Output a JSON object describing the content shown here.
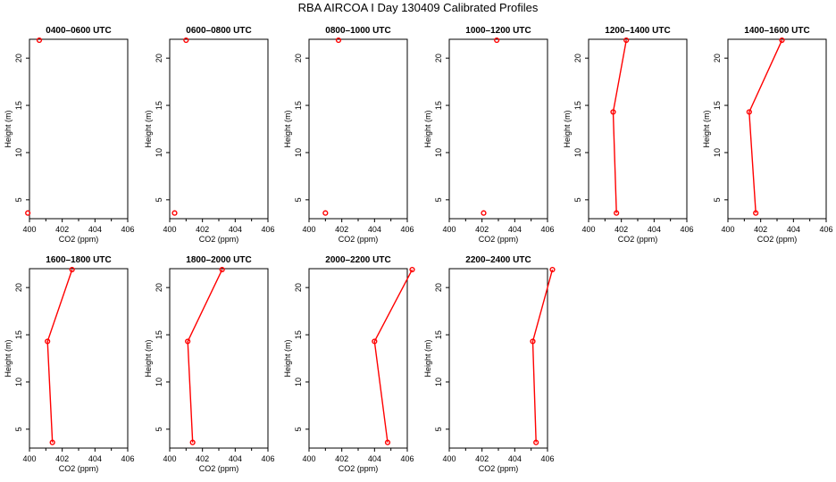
{
  "figure": {
    "title": "RBA AIRCOA I  Day 130409  Calibrated Profiles",
    "series_color": "#ff0000"
  },
  "chart_data": [
    {
      "type": "line",
      "title": "0400–0600 UTC",
      "xlabel": "CO2 (ppm)",
      "ylabel": "Height (m)",
      "xlim": [
        400,
        406
      ],
      "ylim": [
        3,
        22
      ],
      "xticks": [
        400,
        402,
        404,
        406
      ],
      "yticks": [
        5,
        10,
        15,
        20
      ],
      "points": [
        {
          "x": 399.9,
          "y": 3.6
        },
        {
          "x": 400.6,
          "y": 21.9
        }
      ],
      "connected": false
    },
    {
      "type": "line",
      "title": "0600–0800 UTC",
      "xlabel": "CO2 (ppm)",
      "ylabel": "Height (m)",
      "xlim": [
        400,
        406
      ],
      "ylim": [
        3,
        22
      ],
      "xticks": [
        400,
        402,
        404,
        406
      ],
      "yticks": [
        5,
        10,
        15,
        20
      ],
      "points": [
        {
          "x": 400.3,
          "y": 3.6
        },
        {
          "x": 401.0,
          "y": 21.9
        }
      ],
      "connected": false
    },
    {
      "type": "line",
      "title": "0800–1000 UTC",
      "xlabel": "CO2 (ppm)",
      "ylabel": "Height (m)",
      "xlim": [
        400,
        406
      ],
      "ylim": [
        3,
        22
      ],
      "xticks": [
        400,
        402,
        404,
        406
      ],
      "yticks": [
        5,
        10,
        15,
        20
      ],
      "points": [
        {
          "x": 401.0,
          "y": 3.6
        },
        {
          "x": 401.8,
          "y": 21.9
        }
      ],
      "connected": false
    },
    {
      "type": "line",
      "title": "1000–1200 UTC",
      "xlabel": "CO2 (ppm)",
      "ylabel": "Height (m)",
      "xlim": [
        400,
        406
      ],
      "ylim": [
        3,
        22
      ],
      "xticks": [
        400,
        402,
        404,
        406
      ],
      "yticks": [
        5,
        10,
        15,
        20
      ],
      "points": [
        {
          "x": 402.1,
          "y": 3.6
        },
        {
          "x": 402.9,
          "y": 21.9
        }
      ],
      "connected": false
    },
    {
      "type": "line",
      "title": "1200–1400 UTC",
      "xlabel": "CO2 (ppm)",
      "ylabel": "Height (m)",
      "xlim": [
        400,
        406
      ],
      "ylim": [
        3,
        22
      ],
      "xticks": [
        400,
        402,
        404,
        406
      ],
      "yticks": [
        5,
        10,
        15,
        20
      ],
      "points": [
        {
          "x": 401.7,
          "y": 3.6
        },
        {
          "x": 401.5,
          "y": 14.3
        },
        {
          "x": 402.3,
          "y": 21.9
        }
      ],
      "connected": true
    },
    {
      "type": "line",
      "title": "1400–1600 UTC",
      "xlabel": "CO2 (ppm)",
      "ylabel": "Height (m)",
      "xlim": [
        400,
        406
      ],
      "ylim": [
        3,
        22
      ],
      "xticks": [
        400,
        402,
        404,
        406
      ],
      "yticks": [
        5,
        10,
        15,
        20
      ],
      "points": [
        {
          "x": 401.7,
          "y": 3.6
        },
        {
          "x": 401.3,
          "y": 14.3
        },
        {
          "x": 403.3,
          "y": 21.9
        }
      ],
      "connected": true
    },
    {
      "type": "line",
      "title": "1600–1800 UTC",
      "xlabel": "CO2 (ppm)",
      "ylabel": "Height (m)",
      "xlim": [
        400,
        406
      ],
      "ylim": [
        3,
        22
      ],
      "xticks": [
        400,
        402,
        404,
        406
      ],
      "yticks": [
        5,
        10,
        15,
        20
      ],
      "points": [
        {
          "x": 401.4,
          "y": 3.6
        },
        {
          "x": 401.1,
          "y": 14.3
        },
        {
          "x": 402.6,
          "y": 21.9
        }
      ],
      "connected": true
    },
    {
      "type": "line",
      "title": "1800–2000 UTC",
      "xlabel": "CO2 (ppm)",
      "ylabel": "Height (m)",
      "xlim": [
        400,
        406
      ],
      "ylim": [
        3,
        22
      ],
      "xticks": [
        400,
        402,
        404,
        406
      ],
      "yticks": [
        5,
        10,
        15,
        20
      ],
      "points": [
        {
          "x": 401.4,
          "y": 3.6
        },
        {
          "x": 401.1,
          "y": 14.3
        },
        {
          "x": 403.2,
          "y": 21.9
        }
      ],
      "connected": true
    },
    {
      "type": "line",
      "title": "2000–2200 UTC",
      "xlabel": "CO2 (ppm)",
      "ylabel": "Height (m)",
      "xlim": [
        400,
        406
      ],
      "ylim": [
        3,
        22
      ],
      "xticks": [
        400,
        402,
        404,
        406
      ],
      "yticks": [
        5,
        10,
        15,
        20
      ],
      "points": [
        {
          "x": 404.8,
          "y": 3.6
        },
        {
          "x": 404.0,
          "y": 14.3
        },
        {
          "x": 406.3,
          "y": 21.9
        }
      ],
      "connected": true
    },
    {
      "type": "line",
      "title": "2200–2400 UTC",
      "xlabel": "CO2 (ppm)",
      "ylabel": "Height (m)",
      "xlim": [
        400,
        406
      ],
      "ylim": [
        3,
        22
      ],
      "xticks": [
        400,
        402,
        404,
        406
      ],
      "yticks": [
        5,
        10,
        15,
        20
      ],
      "points": [
        {
          "x": 405.3,
          "y": 3.6
        },
        {
          "x": 405.1,
          "y": 14.3
        },
        {
          "x": 406.3,
          "y": 21.9
        }
      ],
      "connected": true
    }
  ]
}
